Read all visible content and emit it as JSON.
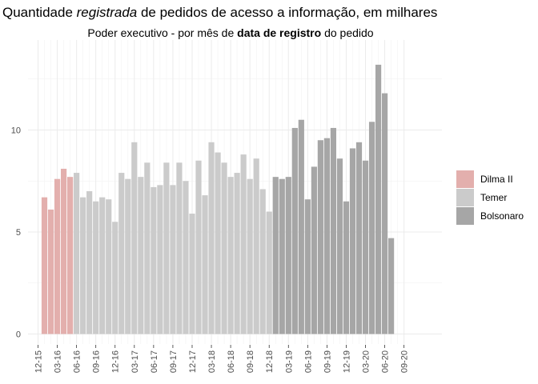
{
  "title": {
    "prefix": "Quantidade ",
    "italic": "registrada",
    "suffix": " de pedidos de acesso a informação, em milhares"
  },
  "subtitle": {
    "prefix": "Poder executivo - por mês de ",
    "bold": "data de registro",
    "suffix": " do pedido"
  },
  "chart_data": {
    "type": "bar",
    "title": "Quantidade registrada de pedidos de acesso a informação, em milhares",
    "subtitle": "Poder executivo - por mês de data de registro do pedido",
    "xlabel": "",
    "ylabel": "",
    "ylim": [
      0,
      13.8
    ],
    "y_ticks": [
      0,
      5,
      10
    ],
    "grid": true,
    "legend_position": "right",
    "x_tick_labels": [
      "12-15",
      "03-16",
      "06-16",
      "09-16",
      "12-16",
      "03-17",
      "06-17",
      "09-17",
      "12-17",
      "03-18",
      "06-18",
      "09-18",
      "12-18",
      "03-19",
      "06-19",
      "09-19",
      "12-19",
      "03-20",
      "06-20",
      "09-20"
    ],
    "x_tick_positions": [
      0,
      3,
      6,
      9,
      12,
      15,
      18,
      21,
      24,
      27,
      30,
      33,
      36,
      39,
      42,
      45,
      48,
      51,
      54,
      57
    ],
    "month_slots": 58,
    "first_bar_slot": 1,
    "series": [
      {
        "name": "Dilma II",
        "color": "#e3afad",
        "categories": [
          "01-16",
          "02-16",
          "03-16",
          "04-16",
          "05-16"
        ],
        "values": [
          6.7,
          6.1,
          7.6,
          8.1,
          7.7
        ]
      },
      {
        "name": "Temer",
        "color": "#cbcbcb",
        "categories": [
          "06-16",
          "07-16",
          "08-16",
          "09-16",
          "10-16",
          "11-16",
          "12-16",
          "01-17",
          "02-17",
          "03-17",
          "04-17",
          "05-17",
          "06-17",
          "07-17",
          "08-17",
          "09-17",
          "10-17",
          "11-17",
          "12-17",
          "01-18",
          "02-18",
          "03-18",
          "04-18",
          "05-18",
          "06-18",
          "07-18",
          "08-18",
          "09-18",
          "10-18",
          "11-18",
          "12-18"
        ],
        "values": [
          7.9,
          6.7,
          7.0,
          6.5,
          6.7,
          6.6,
          5.5,
          7.9,
          7.6,
          9.4,
          7.7,
          8.4,
          7.2,
          7.3,
          8.4,
          7.3,
          8.4,
          7.5,
          5.9,
          8.5,
          6.8,
          9.4,
          8.9,
          8.4,
          7.7,
          7.9,
          8.8,
          7.6,
          8.6,
          7.1,
          6.0
        ]
      },
      {
        "name": "Bolsonaro",
        "color": "#a6a6a6",
        "categories": [
          "01-19",
          "02-19",
          "03-19",
          "04-19",
          "05-19",
          "06-19",
          "07-19",
          "08-19",
          "09-19",
          "10-19",
          "11-19",
          "12-19",
          "01-20",
          "02-20",
          "03-20",
          "04-20",
          "05-20",
          "06-20",
          "07-20"
        ],
        "values": [
          7.7,
          7.6,
          7.7,
          10.1,
          10.5,
          6.6,
          8.2,
          9.5,
          9.6,
          10.1,
          8.6,
          6.5,
          9.1,
          9.4,
          8.5,
          10.4,
          13.2,
          11.8,
          4.7
        ]
      }
    ]
  }
}
